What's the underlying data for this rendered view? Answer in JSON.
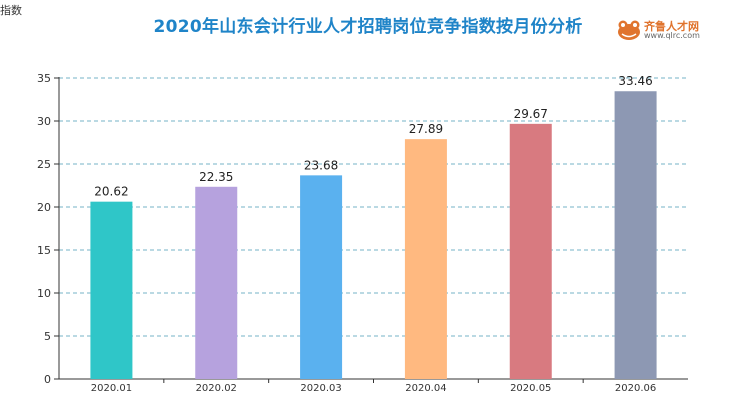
{
  "title": "2020年山东会计行业人才招聘岗位竞争指数按月份分析",
  "logo": {
    "name": "齐鲁人才网",
    "url": "www.qlrc.com",
    "color": "#e0742e"
  },
  "chart_data": {
    "type": "bar",
    "title": "2020年山东会计行业人才招聘岗位竞争指数按月份分析",
    "ylabel": "指数",
    "xlabel": "",
    "categories": [
      "2020.01",
      "2020.02",
      "2020.03",
      "2020.04",
      "2020.05",
      "2020.06"
    ],
    "values": [
      20.62,
      22.35,
      23.68,
      27.89,
      29.67,
      33.46
    ],
    "colors": [
      "#2fc6c8",
      "#b6a2de",
      "#5ab1ef",
      "#ffb980",
      "#d87a80",
      "#8d98b3"
    ],
    "ylim": [
      0,
      35
    ],
    "yticks": [
      0,
      5,
      10,
      15,
      20,
      25,
      30,
      35
    ],
    "grid": true
  }
}
